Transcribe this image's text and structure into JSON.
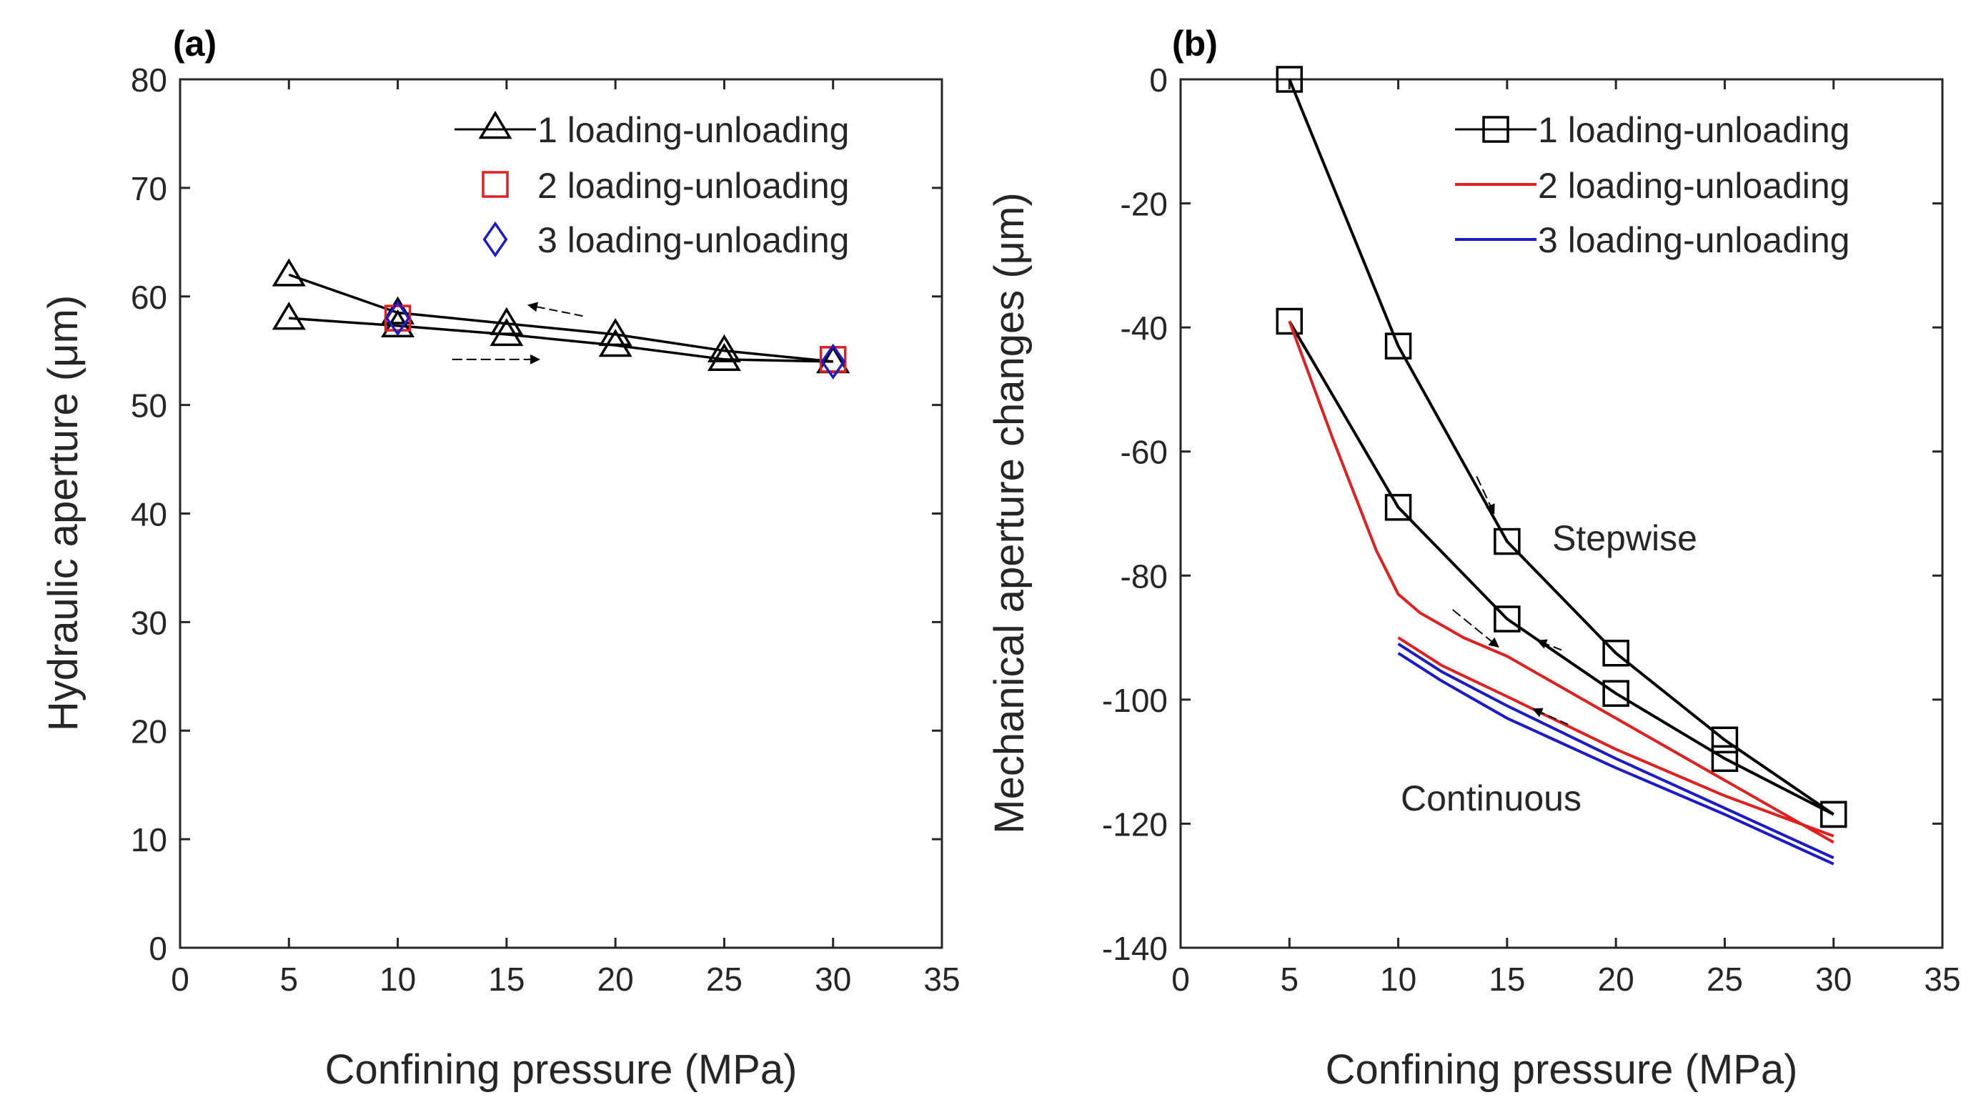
{
  "colors": {
    "series1": "#000000",
    "series2": "#e02020",
    "series3": "#1a1ac8"
  },
  "chart_data": [
    {
      "panel": "(a)",
      "type": "line",
      "xlabel": "Confining pressure (MPa)",
      "ylabel": "Hydraulic aperture (μm)",
      "xlim": [
        0,
        35
      ],
      "ylim": [
        0,
        80
      ],
      "xticks": [
        0,
        5,
        10,
        15,
        20,
        25,
        30,
        35
      ],
      "yticks": [
        0,
        10,
        20,
        30,
        40,
        50,
        60,
        70,
        80
      ],
      "legend_position": "top-right",
      "series": [
        {
          "name": "1 loading-unloading",
          "marker": "triangle",
          "color": "#000000",
          "loading": {
            "x": [
              5,
              10,
              15,
              20,
              25,
              30
            ],
            "y": [
              62,
              58.5,
              57.5,
              56.5,
              55,
              54
            ]
          },
          "unloading": {
            "x": [
              30,
              25,
              20,
              15,
              10,
              5
            ],
            "y": [
              54,
              54.2,
              55.5,
              56.5,
              57.3,
              58
            ]
          }
        },
        {
          "name": "2 loading-unloading",
          "marker": "square",
          "color": "#e02020",
          "points": {
            "x": [
              10,
              30
            ],
            "y": [
              58,
              54.2
            ]
          }
        },
        {
          "name": "3 loading-unloading",
          "marker": "diamond",
          "color": "#1a1ac8",
          "points": {
            "x": [
              10,
              30
            ],
            "y": [
              58,
              54
            ]
          }
        }
      ],
      "arrows": [
        {
          "direction": "loading",
          "from": [
            12.5,
            54.2
          ],
          "to": [
            16.5,
            54.2
          ]
        },
        {
          "direction": "unloading",
          "from": [
            18.5,
            58.2
          ],
          "to": [
            16,
            59.2
          ]
        }
      ]
    },
    {
      "panel": "(b)",
      "type": "line",
      "xlabel": "Confining pressure (MPa)",
      "ylabel": "Mechanical aperture changes (μm)",
      "xlim": [
        0,
        35
      ],
      "ylim": [
        -140,
        0
      ],
      "xticks": [
        0,
        5,
        10,
        15,
        20,
        25,
        30,
        35
      ],
      "yticks": [
        0,
        -20,
        -40,
        -60,
        -80,
        -100,
        -120,
        -140
      ],
      "legend_position": "top-right",
      "annotations": [
        "Stepwise",
        "Continuous"
      ],
      "series": [
        {
          "name": "1 loading-unloading",
          "marker": "square",
          "color": "#000000",
          "mode": "stepwise",
          "loading": {
            "x": [
              5,
              10,
              15,
              20,
              25,
              30
            ],
            "y": [
              0,
              -43,
              -74.5,
              -92.5,
              -106.5,
              -118.5
            ]
          },
          "unloading": {
            "x": [
              30,
              25,
              20,
              15,
              10,
              5
            ],
            "y": [
              -118.5,
              -109.5,
              -99,
              -87,
              -69,
              -39
            ]
          }
        },
        {
          "name": "2 loading-unloading",
          "marker": "none",
          "color": "#e02020",
          "mode": "continuous",
          "loading": {
            "x": [
              5,
              7,
              9,
              10,
              11,
              13,
              15,
              20,
              25,
              30
            ],
            "y": [
              -39,
              -58,
              -76,
              -83,
              -86,
              -90,
              -93,
              -103,
              -113,
              -123
            ]
          },
          "unloading": {
            "x": [
              30,
              25,
              20,
              15,
              12,
              10
            ],
            "y": [
              -122,
              -115.5,
              -108,
              -99.5,
              -94.5,
              -90
            ]
          }
        },
        {
          "name": "3 loading-unloading",
          "marker": "none",
          "color": "#1a1ac8",
          "mode": "continuous",
          "loading": {
            "x": [
              10,
              12,
              15,
              20,
              25,
              30
            ],
            "y": [
              -92.5,
              -97,
              -103,
              -111,
              -118.5,
              -126.5
            ]
          },
          "unloading": {
            "x": [
              30,
              25,
              20,
              15,
              12,
              10
            ],
            "y": [
              -125.5,
              -117.5,
              -109.5,
              -101,
              -95.5,
              -91
            ]
          }
        }
      ],
      "arrows": [
        {
          "direction": "loading",
          "from": [
            13.6,
            -64
          ],
          "to": [
            14.4,
            -70
          ]
        },
        {
          "direction": "loading",
          "from": [
            12.5,
            -85.5
          ],
          "to": [
            14.6,
            -91.5
          ]
        },
        {
          "direction": "unloading",
          "from": [
            17.5,
            -92
          ],
          "to": [
            16.4,
            -90.5
          ]
        },
        {
          "direction": "unloading",
          "from": [
            17.8,
            -104
          ],
          "to": [
            16.2,
            -101.5
          ]
        }
      ]
    }
  ]
}
